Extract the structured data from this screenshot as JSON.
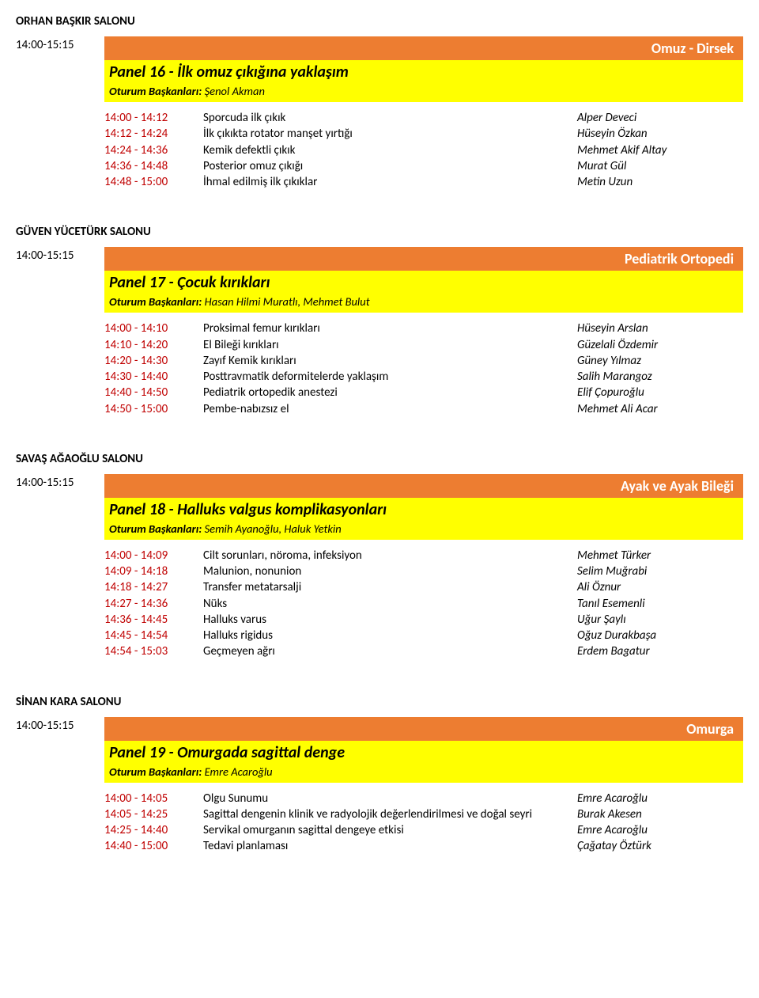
{
  "colors": {
    "orange": "#ed7d31",
    "yellow": "#ffff00",
    "darkred": "#c00000",
    "white": "#ffffff",
    "black": "#000000"
  },
  "sections": [
    {
      "room": "ORHAN BAŞKIR SALONU",
      "time": "14:00-15:15",
      "category": "Omuz - Dirsek",
      "panel_title": "Panel 16 - İlk omuz çıkığına yaklaşım",
      "chairs_label": "Oturum Başkanları: ",
      "chairs": "Şenol Akman",
      "talks": [
        {
          "time": "14:00 - 14:12",
          "title": "Sporcuda ilk çıkık",
          "speaker": "Alper Deveci"
        },
        {
          "time": "14:12 - 14:24",
          "title": "İlk çıkıkta rotator manşet yırtığı",
          "speaker": "Hüseyin Özkan"
        },
        {
          "time": "14:24 - 14:36",
          "title": "Kemik defektli çıkık",
          "speaker": "Mehmet Akif Altay"
        },
        {
          "time": "14:36 - 14:48",
          "title": "Posterior omuz çıkığı",
          "speaker": "Murat Gül"
        },
        {
          "time": "14:48 - 15:00",
          "title": "İhmal edilmiş ilk çıkıklar",
          "speaker": "Metin Uzun"
        }
      ]
    },
    {
      "room": "GÜVEN YÜCETÜRK SALONU",
      "time": "14:00-15:15",
      "category": "Pediatrik Ortopedi",
      "panel_title": "Panel 17 - Çocuk kırıkları",
      "chairs_label": "Oturum Başkanları: ",
      "chairs": "Hasan Hilmi Muratlı, Mehmet Bulut",
      "talks": [
        {
          "time": "14:00 - 14:10",
          "title": "Proksimal femur kırıkları",
          "speaker": "Hüseyin Arslan"
        },
        {
          "time": "14:10 - 14:20",
          "title": "El Bileği kırıkları",
          "speaker": "Güzelali Özdemir"
        },
        {
          "time": "14:20 - 14:30",
          "title": "Zayıf Kemik kırıkları",
          "speaker": "Güney Yılmaz"
        },
        {
          "time": "14:30 - 14:40",
          "title": "Posttravmatik deformitelerde yaklaşım",
          "speaker": "Salih Marangoz"
        },
        {
          "time": "14:40 - 14:50",
          "title": "Pediatrik ortopedik anestezi",
          "speaker": "Elif Çopuroğlu"
        },
        {
          "time": "14:50 - 15:00",
          "title": "Pembe-nabızsız el",
          "speaker": "Mehmet Ali Acar"
        }
      ]
    },
    {
      "room": "SAVAŞ AĞAOĞLU SALONU",
      "time": "14:00-15:15",
      "category": "Ayak ve Ayak Bileği",
      "panel_title": "Panel 18 - Halluks valgus komplikasyonları",
      "chairs_label": "Oturum Başkanları: ",
      "chairs": "Semih Ayanoğlu, Haluk Yetkin",
      "talks": [
        {
          "time": "14:00 - 14:09",
          "title": "Cilt sorunları, nöroma, infeksiyon",
          "speaker": "Mehmet Türker"
        },
        {
          "time": "14:09 - 14:18",
          "title": "Malunion, nonunion",
          "speaker": "Selim Muğrabi"
        },
        {
          "time": "14:18 - 14:27",
          "title": "Transfer metatarsalji",
          "speaker": "Ali Öznur"
        },
        {
          "time": "14:27 - 14:36",
          "title": "Nüks",
          "speaker": "Tanıl Esemenli"
        },
        {
          "time": "14:36 - 14:45",
          "title": "Halluks varus",
          "speaker": "Uğur Şaylı"
        },
        {
          "time": "14:45 - 14:54",
          "title": "Halluks rigidus",
          "speaker": "Oğuz Durakbaşa"
        },
        {
          "time": "14:54 - 15:03",
          "title": "Geçmeyen ağrı",
          "speaker": "Erdem Bagatur"
        }
      ]
    },
    {
      "room": "SİNAN KARA SALONU",
      "time": "14:00-15:15",
      "category": "Omurga",
      "panel_title": "Panel 19 - Omurgada sagittal denge",
      "chairs_label": "Oturum Başkanları: ",
      "chairs": "Emre Acaroğlu",
      "talks": [
        {
          "time": "14:00 - 14:05",
          "title": "Olgu Sunumu",
          "speaker": "Emre Acaroğlu"
        },
        {
          "time": "14:05 - 14:25",
          "title": "Sagittal dengenin klinik ve radyolojik değerlendirilmesi ve doğal seyri",
          "speaker": "Burak Akesen"
        },
        {
          "time": "14:25 - 14:40",
          "title": "Servikal omurganın sagittal dengeye etkisi",
          "speaker": "Emre Acaroğlu"
        },
        {
          "time": "14:40 - 15:00",
          "title": "Tedavi planlaması",
          "speaker": "Çağatay Öztürk"
        }
      ]
    }
  ]
}
